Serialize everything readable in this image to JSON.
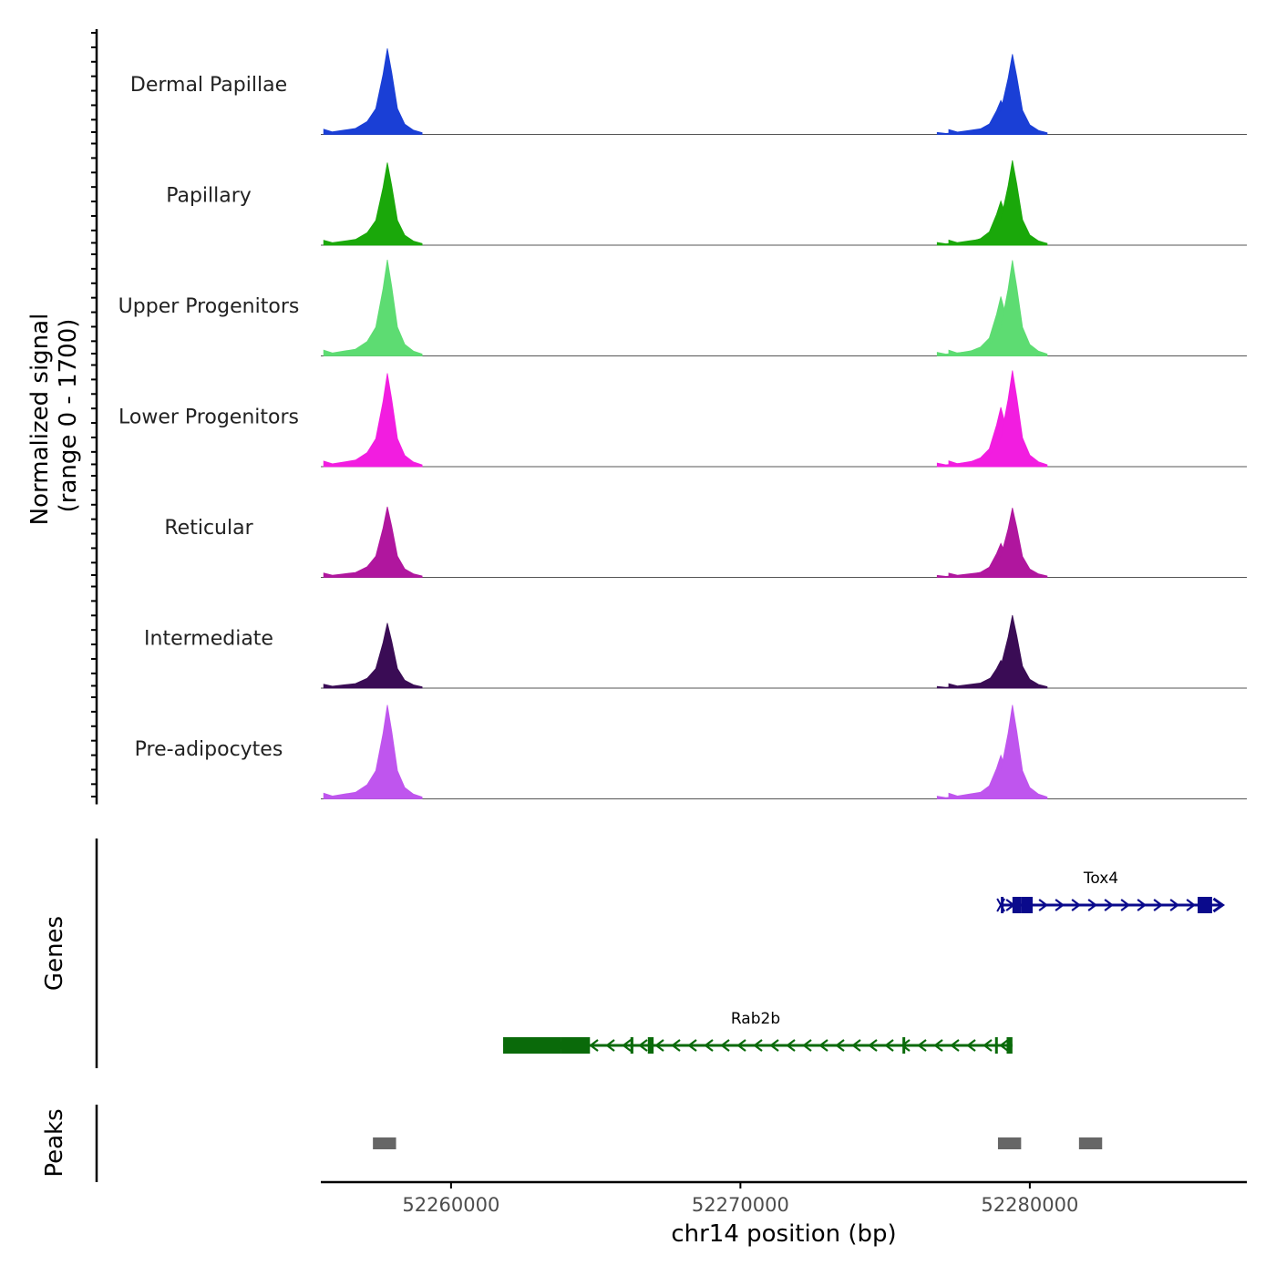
{
  "chart_data": {
    "type": "area",
    "title": "",
    "region": {
      "chrom": "chr14",
      "start": 52255500,
      "end": 52287500
    },
    "ylabel_line1": "Normalized signal",
    "ylabel_line2": "(range 0 - 1700)",
    "ylim": [
      0,
      1700
    ],
    "xlabel": "chr14 position (bp)",
    "xticks": [
      52260000,
      52270000,
      52280000
    ],
    "xtick_labels": [
      "52260000",
      "52270000",
      "52280000"
    ],
    "peak_shape": [
      {
        "offset": -2200,
        "value": 0.06
      },
      {
        "offset": -1900,
        "value": 0.03
      },
      {
        "offset": -1500,
        "value": 0.05
      },
      {
        "offset": -1100,
        "value": 0.07
      },
      {
        "offset": -700,
        "value": 0.15
      },
      {
        "offset": -400,
        "value": 0.3
      },
      {
        "offset": -150,
        "value": 0.7
      },
      {
        "offset": 0,
        "value": 1.0
      },
      {
        "offset": 150,
        "value": 0.72
      },
      {
        "offset": 350,
        "value": 0.3
      },
      {
        "offset": 600,
        "value": 0.12
      },
      {
        "offset": 900,
        "value": 0.05
      },
      {
        "offset": 1200,
        "value": 0.02
      }
    ],
    "series": [
      {
        "name": "Dermal Papillae",
        "color": "#1a3fd6",
        "peaks": [
          {
            "center": 52257800,
            "value": 1520
          },
          {
            "center": 52279000,
            "value": 600
          },
          {
            "center": 52279400,
            "value": 1420
          }
        ]
      },
      {
        "name": "Papillary",
        "color": "#1aa80a",
        "peaks": [
          {
            "center": 52257800,
            "value": 1460
          },
          {
            "center": 52279000,
            "value": 780
          },
          {
            "center": 52279400,
            "value": 1500
          }
        ]
      },
      {
        "name": "Upper Progenitors",
        "color": "#5ddc72",
        "peaks": [
          {
            "center": 52257800,
            "value": 1700
          },
          {
            "center": 52279000,
            "value": 1050
          },
          {
            "center": 52279400,
            "value": 1690
          }
        ]
      },
      {
        "name": "Lower Progenitors",
        "color": "#f21de0",
        "peaks": [
          {
            "center": 52257800,
            "value": 1650
          },
          {
            "center": 52279000,
            "value": 1050
          },
          {
            "center": 52279400,
            "value": 1700
          }
        ]
      },
      {
        "name": "Reticular",
        "color": "#b0169e",
        "peaks": [
          {
            "center": 52257800,
            "value": 1250
          },
          {
            "center": 52279000,
            "value": 600
          },
          {
            "center": 52279400,
            "value": 1230
          }
        ]
      },
      {
        "name": "Intermediate",
        "color": "#3a0c55",
        "peaks": [
          {
            "center": 52257800,
            "value": 1150
          },
          {
            "center": 52279000,
            "value": 490
          },
          {
            "center": 52279400,
            "value": 1290
          }
        ]
      },
      {
        "name": "Pre-adipocytes",
        "color": "#bf55ee",
        "peaks": [
          {
            "center": 52257800,
            "value": 1660
          },
          {
            "center": 52279000,
            "value": 770
          },
          {
            "center": 52279400,
            "value": 1660
          }
        ]
      }
    ],
    "genes_label": "Genes",
    "genes": [
      {
        "name": "Tox4",
        "strand": "+",
        "start": 52279000,
        "end": 52286600,
        "color": "#0a0a8c",
        "exons": [
          [
            52279000,
            52279050
          ],
          [
            52279400,
            52279700
          ],
          [
            52279700,
            52280100
          ],
          [
            52285800,
            52286300
          ]
        ]
      },
      {
        "name": "Rab2b",
        "strand": "-",
        "start": 52261800,
        "end": 52279400,
        "color": "#0a6a0a",
        "exons": [
          [
            52261800,
            52263800
          ],
          [
            52263800,
            52264800
          ],
          [
            52266200,
            52266300
          ],
          [
            52266800,
            52267000
          ],
          [
            52275600,
            52275650
          ],
          [
            52278800,
            52278850
          ],
          [
            52279200,
            52279400
          ]
        ]
      }
    ],
    "peaks_label": "Peaks",
    "peaks_color": "#666666",
    "peaks": [
      [
        52257300,
        52258100
      ],
      [
        52278900,
        52279700
      ],
      [
        52281700,
        52282500
      ]
    ]
  }
}
